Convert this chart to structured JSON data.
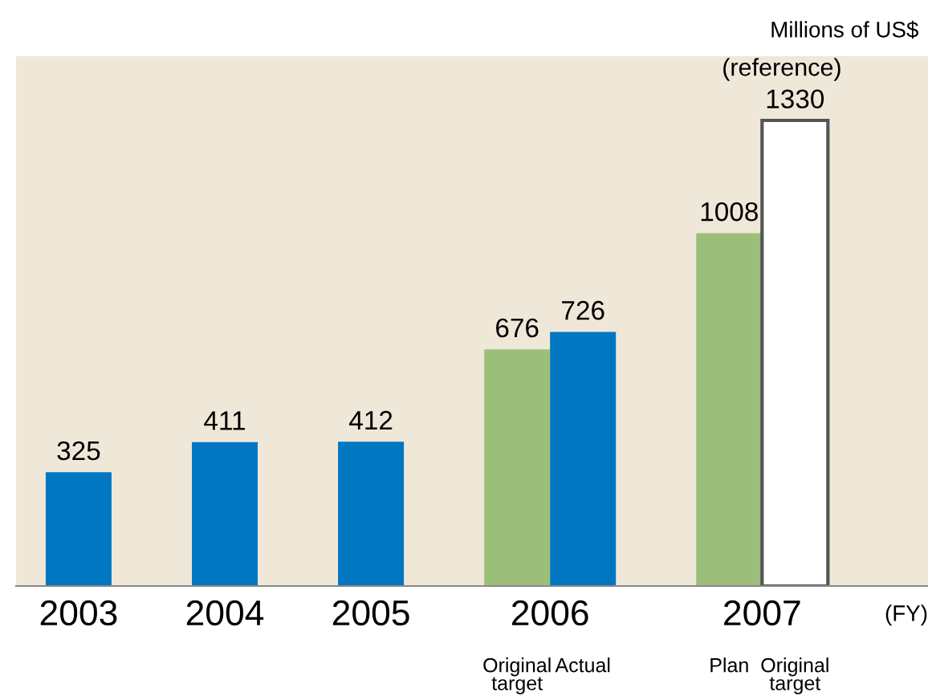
{
  "chart_data": {
    "type": "bar",
    "categories": [
      "2003",
      "2004",
      "2005",
      "2006",
      "2007"
    ],
    "series": [
      {
        "colors": [
          "#0077c0",
          "#0077c0",
          "#0077c0",
          "#9bbf7a",
          "#9bbf7a"
        ],
        "values": [
          325,
          411,
          412,
          676,
          1008
        ]
      },
      {
        "colors": [
          null,
          null,
          null,
          "#0077c0",
          "#ffffff"
        ],
        "values": [
          null,
          null,
          null,
          726,
          1330
        ]
      }
    ],
    "ylabel": "Millions of US$",
    "annotations": [
      "Original\ntarget",
      "Actual",
      "Plan",
      "Original\ntarget",
      "(reference)",
      "(FY)"
    ],
    "data_labels": true
  }
}
